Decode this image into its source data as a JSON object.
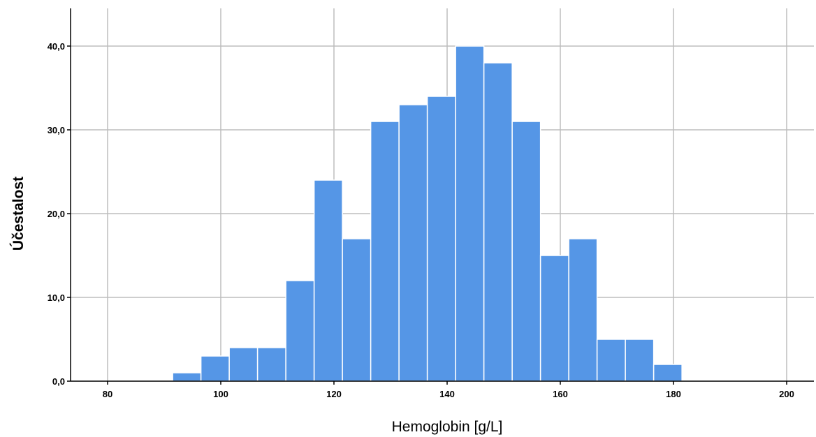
{
  "chart_data": {
    "type": "bar",
    "xlabel": "Hemoglobin [g/L]",
    "ylabel": "Účestalost",
    "xlim": [
      74,
      205
    ],
    "ylim": [
      0,
      44
    ],
    "x_ticks": [
      80,
      100,
      120,
      140,
      160,
      180,
      200
    ],
    "x_tick_labels": [
      "80",
      "100",
      "120",
      "140",
      "160",
      "180",
      "200"
    ],
    "y_ticks": [
      0,
      10,
      20,
      30,
      40
    ],
    "y_tick_labels": [
      "0,0",
      "10,0",
      "20,0",
      "30,0",
      "40,0"
    ],
    "grid": true,
    "bins": [
      {
        "start": 91.5,
        "end": 96.5,
        "count": 1
      },
      {
        "start": 96.5,
        "end": 101.5,
        "count": 3
      },
      {
        "start": 101.5,
        "end": 106.5,
        "count": 4
      },
      {
        "start": 106.5,
        "end": 111.5,
        "count": 4
      },
      {
        "start": 111.5,
        "end": 116.5,
        "count": 12
      },
      {
        "start": 116.5,
        "end": 121.5,
        "count": 24
      },
      {
        "start": 121.5,
        "end": 126.5,
        "count": 17
      },
      {
        "start": 126.5,
        "end": 131.5,
        "count": 31
      },
      {
        "start": 131.5,
        "end": 136.5,
        "count": 33
      },
      {
        "start": 136.5,
        "end": 141.5,
        "count": 34
      },
      {
        "start": 141.5,
        "end": 146.5,
        "count": 40
      },
      {
        "start": 146.5,
        "end": 151.5,
        "count": 38
      },
      {
        "start": 151.5,
        "end": 156.5,
        "count": 31
      },
      {
        "start": 156.5,
        "end": 161.5,
        "count": 15
      },
      {
        "start": 161.5,
        "end": 166.5,
        "count": 17
      },
      {
        "start": 166.5,
        "end": 171.5,
        "count": 5
      },
      {
        "start": 171.5,
        "end": 176.5,
        "count": 5
      },
      {
        "start": 176.5,
        "end": 181.5,
        "count": 2
      }
    ],
    "colors": {
      "bar_fill": "#5596E6",
      "bar_stroke": "#FFFFFF",
      "grid": "#BDBDBD",
      "axis": "#000000"
    }
  }
}
